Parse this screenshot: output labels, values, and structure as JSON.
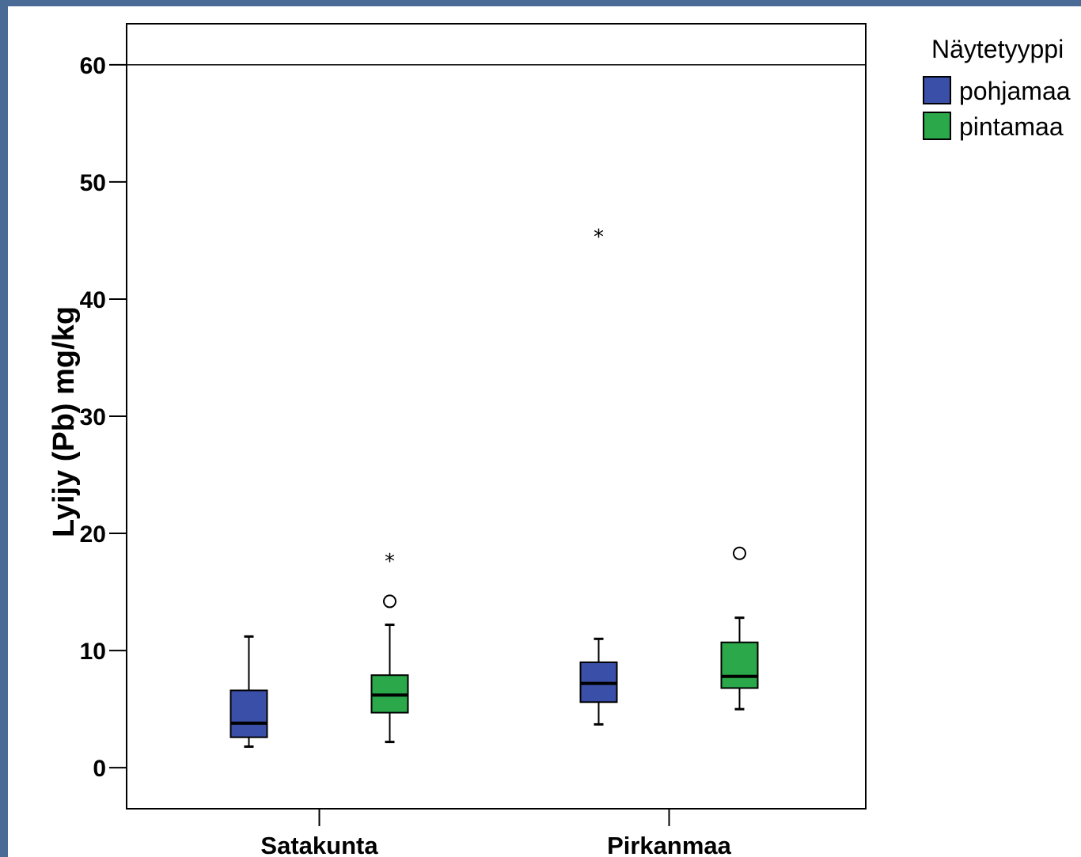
{
  "chart_data": {
    "type": "boxplot",
    "ylabel": "Lyijy (Pb) mg/kg",
    "xlabel": "",
    "ylim": [
      -3.5,
      63.5
    ],
    "yticks": [
      0,
      10,
      20,
      30,
      40,
      50,
      60
    ],
    "reference_line": 60,
    "categories": [
      "Satakunta",
      "Pirkanmaa"
    ],
    "legend": {
      "title": "Näytetyyppi",
      "placement": "right-top"
    },
    "series": [
      {
        "name": "pohjamaa",
        "color": "#3a50a8",
        "boxes": [
          {
            "category": "Satakunta",
            "whisker_low": 1.8,
            "q1": 2.6,
            "median": 3.8,
            "q3": 6.6,
            "whisker_high": 11.2,
            "outliers": [],
            "extremes": []
          },
          {
            "category": "Pirkanmaa",
            "whisker_low": 3.7,
            "q1": 5.6,
            "median": 7.2,
            "q3": 9.0,
            "whisker_high": 11.0,
            "outliers": [],
            "extremes": [
              45.4
            ]
          }
        ]
      },
      {
        "name": "pintamaa",
        "color": "#2aa84a",
        "boxes": [
          {
            "category": "Satakunta",
            "whisker_low": 2.2,
            "q1": 4.7,
            "median": 6.2,
            "q3": 7.9,
            "whisker_high": 12.2,
            "outliers": [
              14.2
            ],
            "extremes": [
              17.7
            ]
          },
          {
            "category": "Pirkanmaa",
            "whisker_low": 5.0,
            "q1": 6.8,
            "median": 7.8,
            "q3": 10.7,
            "whisker_high": 12.8,
            "outliers": [
              18.3
            ],
            "extremes": []
          }
        ]
      }
    ]
  }
}
